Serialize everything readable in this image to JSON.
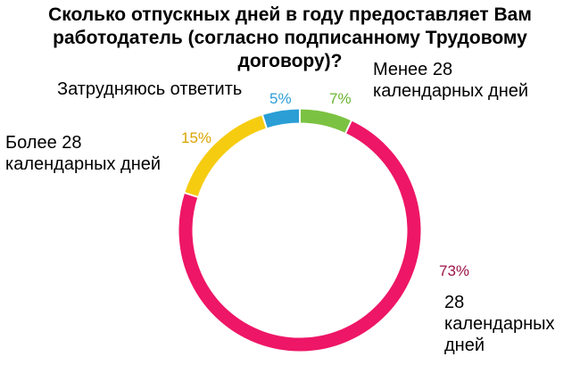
{
  "chart_data": {
    "type": "pie",
    "title": "Сколько отпускных дней в году предоставляет Вам работодатель (согласно подписанному Трудовому договору)?",
    "slices": [
      {
        "label": "Менее 28 календарных дней",
        "value": 7,
        "value_label": "7%",
        "color": "#7cc242"
      },
      {
        "label": "28 календарных дней",
        "value": 73,
        "value_label": "73%",
        "color": "#ee1666"
      },
      {
        "label": "Более 28 календарных дней",
        "value": 15,
        "value_label": "15%",
        "color": "#f6cc11"
      },
      {
        "label": "Затрудняюсь ответить",
        "value": 5,
        "value_label": "5%",
        "color": "#2a9ed5"
      }
    ],
    "value_label_colors": [
      "#6ab42f",
      "#9b1246",
      "#d9a400",
      "#2a9ed5"
    ],
    "style": "donut"
  }
}
